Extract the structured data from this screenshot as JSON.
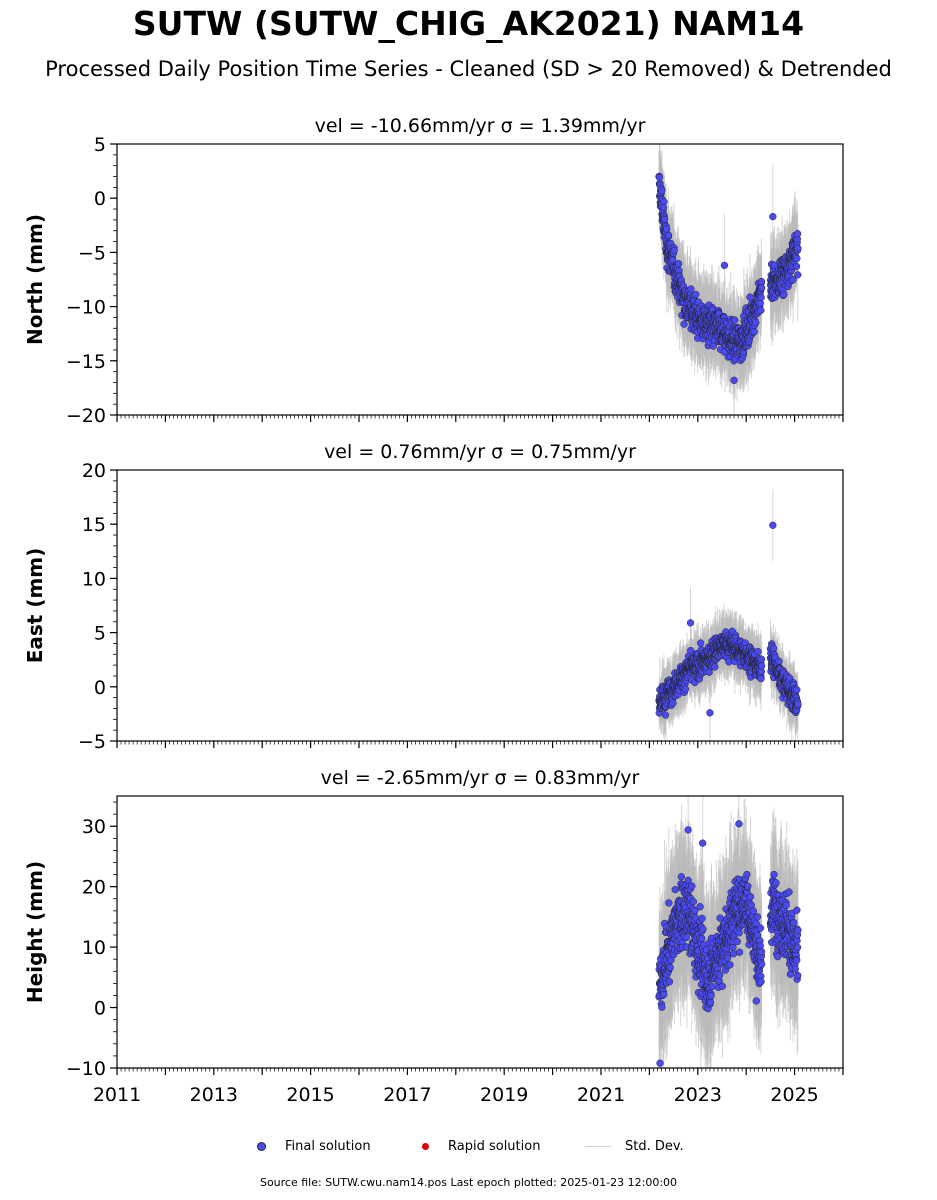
{
  "header": {
    "title": "SUTW (SUTW_CHIG_AK2021) NAM14",
    "subtitle": "Processed Daily Position Time Series - Cleaned (SD > 20 Removed) & Detrended"
  },
  "legend": {
    "final": "Final solution",
    "rapid": "Rapid solution",
    "std": "Std. Dev."
  },
  "footer": {
    "text": "Source file: SUTW.cwu.nam14.pos  Last epoch plotted: 2025-01-23 12:00:00"
  },
  "colors": {
    "final": "#4a4af5",
    "rapid": "#dd0000",
    "std": "#bbbbbb"
  },
  "chart_data": [
    {
      "type": "scatter",
      "panel": "north",
      "title": "vel = -10.66mm/yr   σ = 1.39mm/yr",
      "ylabel": "North (mm)",
      "xlim": [
        2011,
        2026
      ],
      "ylim": [
        -20,
        5
      ],
      "yticks": [
        5,
        0,
        -5,
        -10,
        -15,
        -20
      ],
      "ytick_labels": [
        "5",
        "0",
        "−5",
        "−10",
        "−15",
        "−20"
      ],
      "trend": {
        "x": [
          2022.2,
          2022.35,
          2022.5,
          2022.75,
          2023.0,
          2023.3,
          2023.55,
          2023.8,
          2024.0,
          2024.2,
          2024.32,
          2024.5,
          2024.7,
          2024.9,
          2025.07
        ],
        "y": [
          1.5,
          -4.0,
          -6.5,
          -9.5,
          -11.0,
          -12.0,
          -12.5,
          -13.5,
          -12.5,
          -10.0,
          -8.5,
          -8.0,
          -7.5,
          -6.0,
          -4.5
        ]
      },
      "spread": 1.6,
      "outliers": [
        {
          "x": 2024.55,
          "y": -1.7
        },
        {
          "x": 2023.55,
          "y": -6.2
        },
        {
          "x": 2023.75,
          "y": -16.8
        }
      ],
      "series": [
        {
          "name": "Final solution",
          "x": [
            2022.2,
            2025.07
          ],
          "y": [
            -16.8,
            2.0
          ]
        }
      ]
    },
    {
      "type": "scatter",
      "panel": "east",
      "title": "vel = 0.76mm/yr   σ = 0.75mm/yr",
      "ylabel": "East (mm)",
      "xlim": [
        2011,
        2026
      ],
      "ylim": [
        -5,
        20
      ],
      "yticks": [
        20,
        15,
        10,
        5,
        0,
        -5
      ],
      "ytick_labels": [
        "20",
        "15",
        "10",
        "5",
        "0",
        "−5"
      ],
      "trend": {
        "x": [
          2022.2,
          2022.4,
          2022.6,
          2022.8,
          2023.0,
          2023.2,
          2023.4,
          2023.6,
          2023.8,
          2024.0,
          2024.2,
          2024.32,
          2024.55,
          2024.7,
          2024.9,
          2025.07
        ],
        "y": [
          -1.5,
          -0.5,
          0.5,
          1.5,
          2.0,
          2.5,
          3.5,
          4.0,
          3.5,
          3.0,
          2.0,
          2.0,
          2.5,
          1.0,
          -0.5,
          -1.5
        ]
      },
      "spread": 1.1,
      "outliers": [
        {
          "x": 2024.55,
          "y": 14.9
        },
        {
          "x": 2022.85,
          "y": 5.9
        },
        {
          "x": 2023.25,
          "y": -2.4
        }
      ],
      "series": [
        {
          "name": "Final solution",
          "x": [
            2022.2,
            2025.07
          ],
          "y": [
            -3.3,
            14.9
          ]
        }
      ]
    },
    {
      "type": "scatter",
      "panel": "height",
      "title": "vel = -2.65mm/yr   σ = 0.83mm/yr",
      "ylabel": "Height (mm)",
      "xlabel": "",
      "xlim": [
        2011,
        2026
      ],
      "ylim": [
        -10,
        35
      ],
      "yticks": [
        30,
        20,
        10,
        0,
        -10
      ],
      "ytick_labels": [
        "30",
        "20",
        "10",
        "0",
        "−10"
      ],
      "xticks": [
        2011,
        2013,
        2015,
        2017,
        2019,
        2021,
        2023,
        2025
      ],
      "trend": {
        "x": [
          2022.2,
          2022.4,
          2022.6,
          2022.8,
          2023.0,
          2023.2,
          2023.4,
          2023.6,
          2023.8,
          2024.0,
          2024.2,
          2024.32,
          2024.55,
          2024.7,
          2024.9,
          2025.07
        ],
        "y": [
          3.0,
          10.0,
          15.0,
          16.0,
          10.0,
          5.0,
          8.0,
          12.0,
          16.0,
          18.0,
          10.0,
          6.0,
          17.0,
          15.0,
          12.0,
          8.0
        ]
      },
      "spread": 5.0,
      "outliers": [
        {
          "x": 2022.22,
          "y": -9.2
        },
        {
          "x": 2023.85,
          "y": 30.4
        },
        {
          "x": 2022.8,
          "y": 29.4
        },
        {
          "x": 2023.1,
          "y": 27.2
        }
      ],
      "series": [
        {
          "name": "Final solution",
          "x": [
            2022.2,
            2025.07
          ],
          "y": [
            -9.2,
            30.4
          ]
        }
      ]
    }
  ]
}
